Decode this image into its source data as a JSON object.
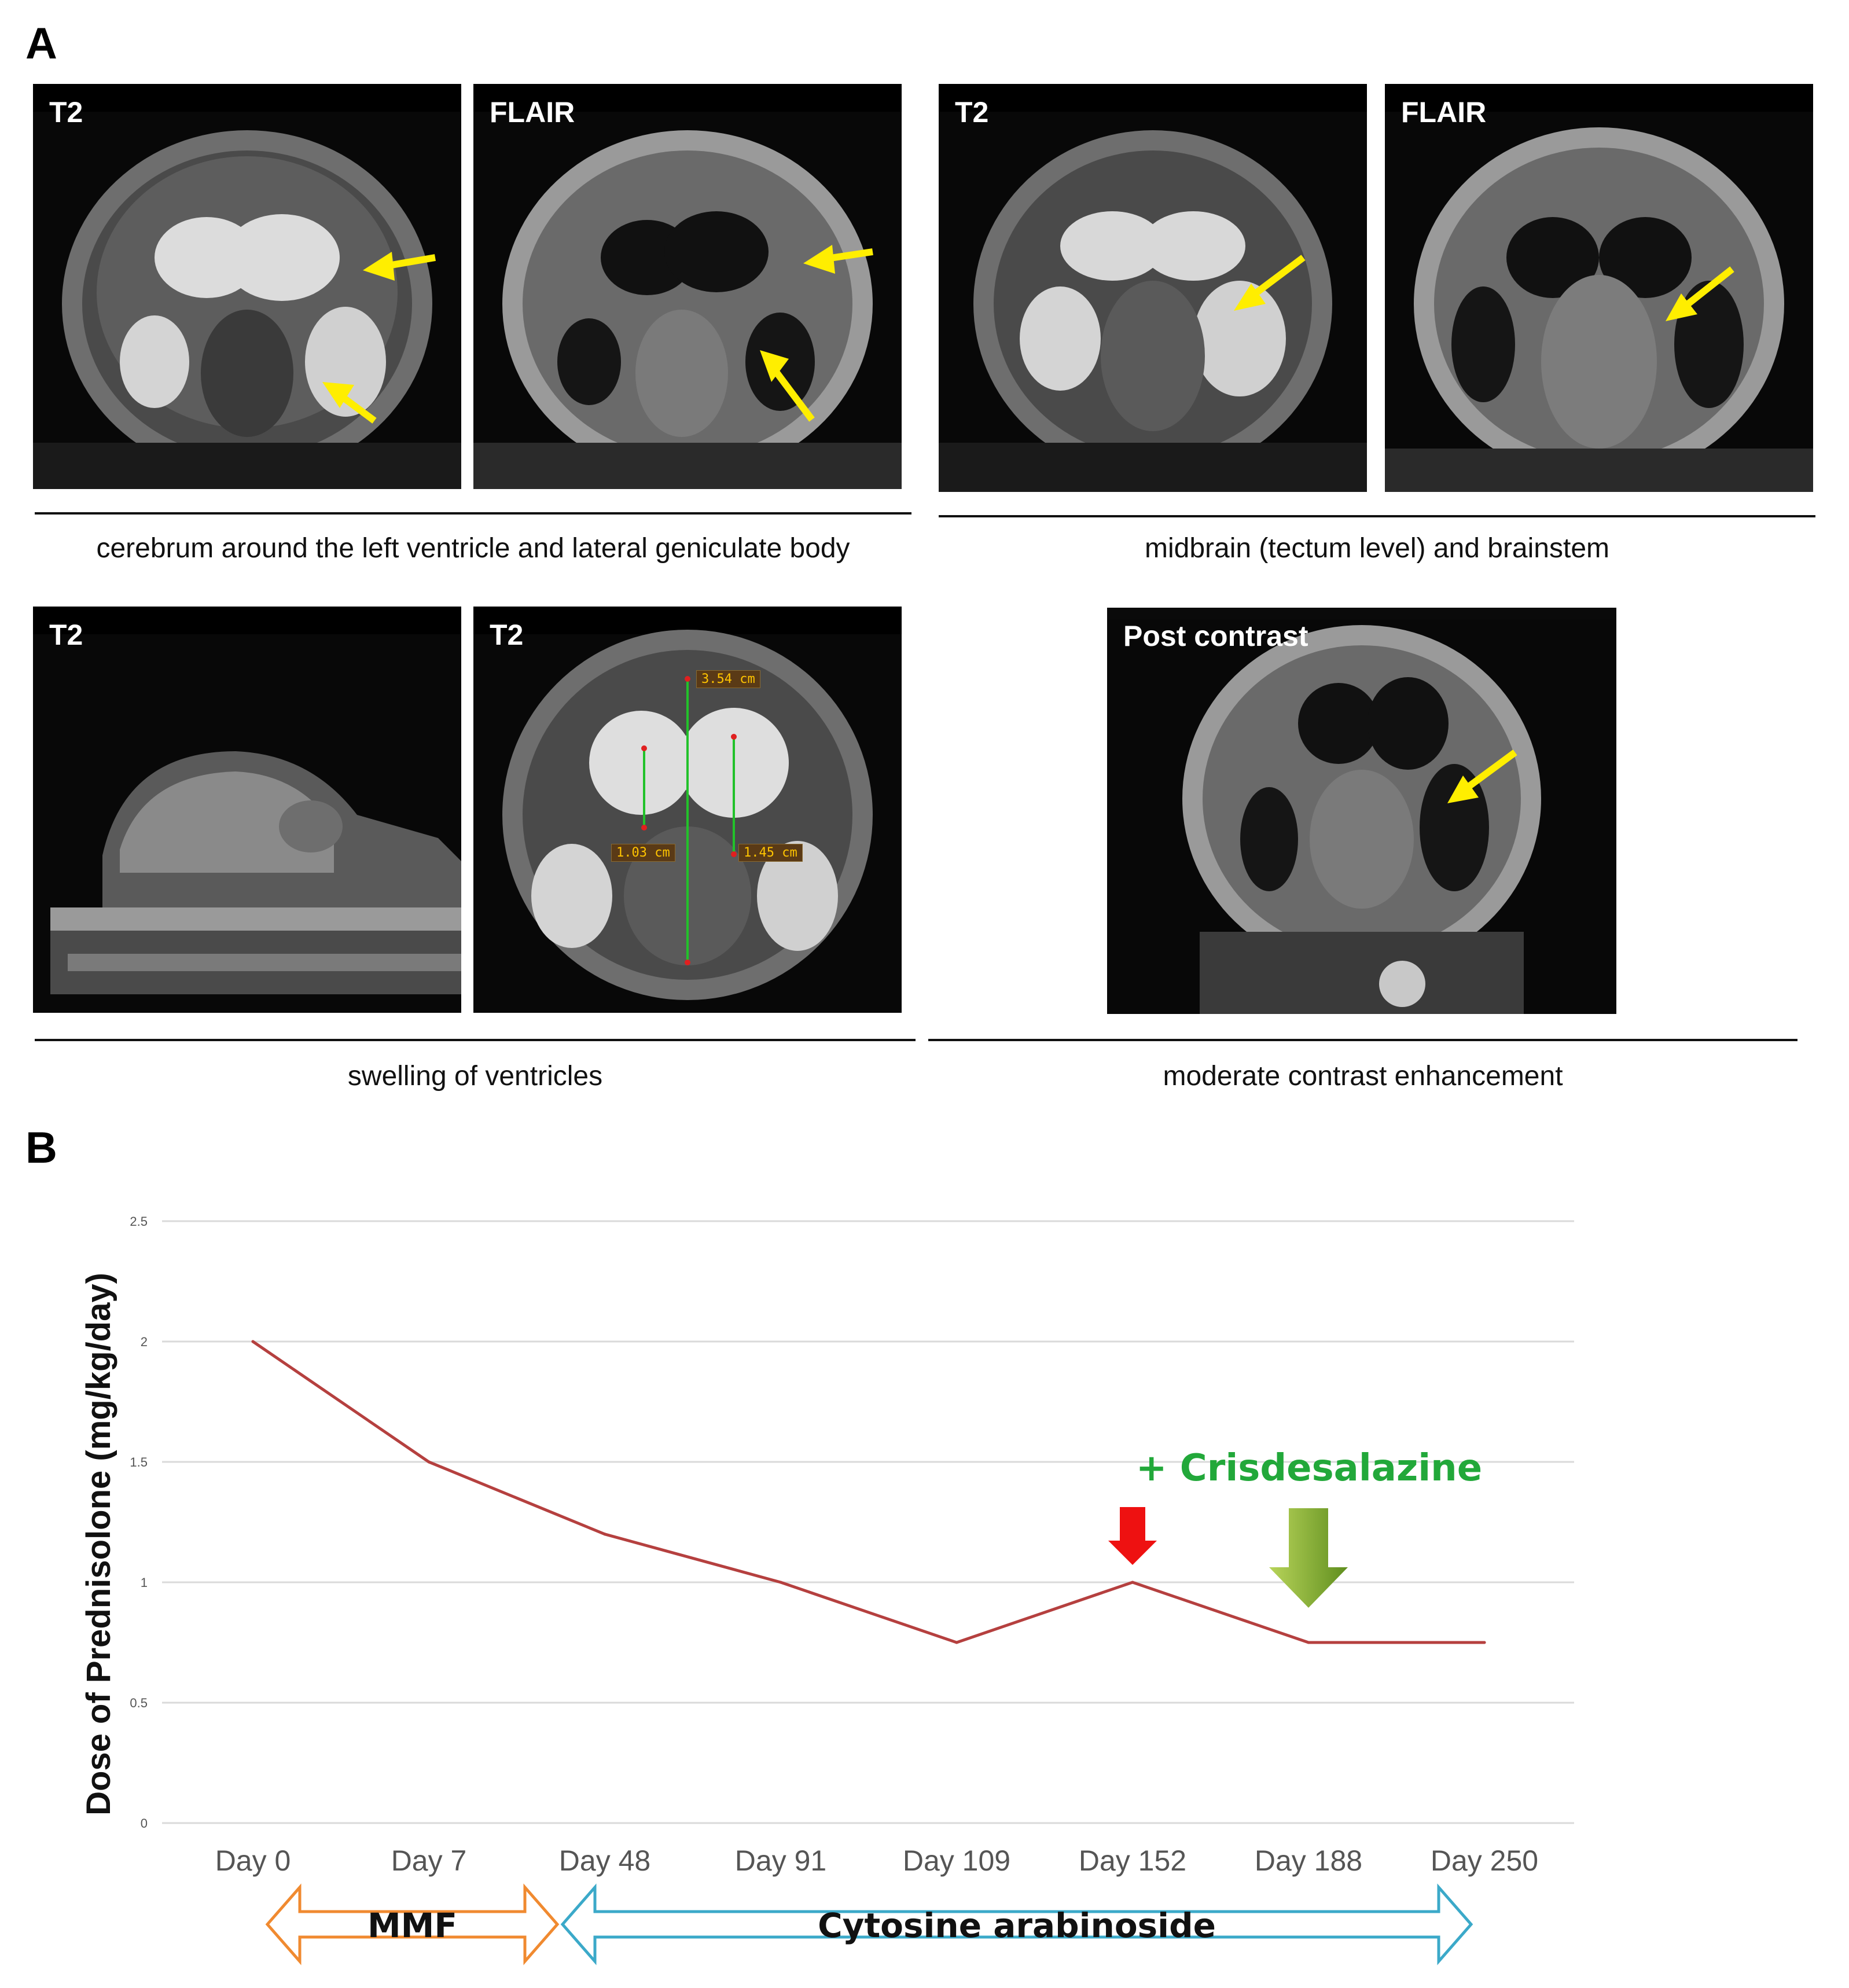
{
  "figure": {
    "panel_a_label": "A",
    "panel_b_label": "B"
  },
  "panel_a": {
    "images": [
      {
        "id": "a1",
        "sequence": "T2"
      },
      {
        "id": "a2",
        "sequence": "FLAIR"
      },
      {
        "id": "a3",
        "sequence": "T2"
      },
      {
        "id": "a4",
        "sequence": "FLAIR"
      },
      {
        "id": "a5",
        "sequence": "T2"
      },
      {
        "id": "a6",
        "sequence": "T2"
      },
      {
        "id": "a7",
        "sequence": "Post contrast"
      }
    ],
    "measurements": [
      "3.54 cm",
      "1.03 cm",
      "1.45 cm"
    ],
    "captions": {
      "top_left": "cerebrum around the left ventricle and lateral geniculate body",
      "top_right": "midbrain (tectum level) and brainstem",
      "bottom_left": "swelling of ventricles",
      "bottom_right": "moderate contrast enhancement"
    },
    "colors": {
      "arrow": "#ffee00",
      "measure_line": "#22c22a"
    }
  },
  "chart_data": {
    "type": "line",
    "categories": [
      "Day 0",
      "Day 7",
      "Day 48",
      "Day 91",
      "Day 109",
      "Day 152",
      "Day 188",
      "Day 250"
    ],
    "series": [
      {
        "name": "Dose of Prednisolone",
        "values": [
          2,
          1.5,
          1.2,
          1.0,
          0.75,
          1.0,
          0.75,
          0.75
        ],
        "color": "#b5403f"
      }
    ],
    "ylabel": "Dose of Prednisolone (mg/kg/day)",
    "xlabel": "",
    "ylim": [
      0,
      2.5
    ],
    "yticks": [
      0,
      0.5,
      1,
      1.5,
      2,
      2.5
    ],
    "ytick_labels": [
      "0",
      "0.5",
      "1",
      "1.5",
      "2",
      "2.5"
    ],
    "grid": true,
    "annotations": {
      "crisdesalazine_label": "+ Crisdesalazine",
      "crisdesalazine_color": "#22a83a",
      "crisdesalazine_arrow_at": "Day 188",
      "red_arrow_at": "Day 152",
      "red_arrow_color": "#ee1111"
    },
    "treatment_bars": [
      {
        "label": "MMF",
        "from": "Day 0",
        "to": "Day 48",
        "color": "#f08a30"
      },
      {
        "label": "Cytosine arabinoside",
        "from": "Day 48",
        "to": "Day 250",
        "color": "#3ba9c9"
      }
    ]
  }
}
